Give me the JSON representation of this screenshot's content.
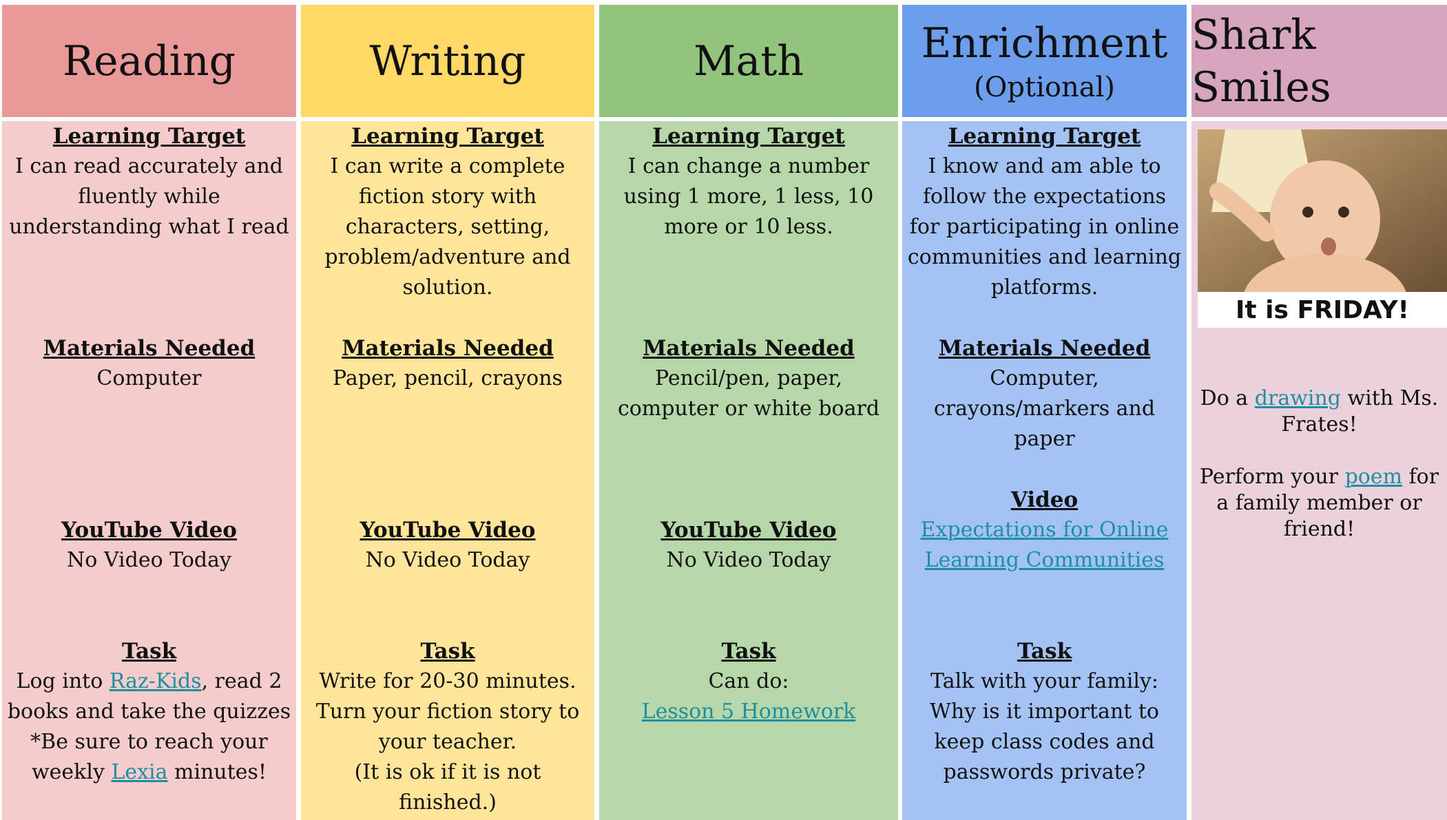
{
  "columns": [
    {
      "title": "Reading",
      "sections": [
        {
          "heading": "Learning Target",
          "text": [
            "I can read accurately and fluently while understanding what I read"
          ]
        },
        {
          "heading": "Materials Needed",
          "text": [
            "Computer"
          ]
        },
        {
          "heading": "YouTube Video",
          "text": [
            "No Video Today"
          ]
        },
        {
          "heading": "Task",
          "text": [
            "Log into ",
            "Raz-Kids",
            ", read 2 books and take the quizzes",
            "*Be sure to reach your weekly ",
            "Lexia",
            " minutes!"
          ]
        }
      ]
    },
    {
      "title": "Writing",
      "sections": [
        {
          "heading": "Learning Target",
          "text": [
            "I can write a complete fiction story with characters, setting, problem/adventure and solution."
          ]
        },
        {
          "heading": "Materials Needed",
          "text": [
            "Paper, pencil, crayons"
          ]
        },
        {
          "heading": "YouTube Video",
          "text": [
            "No Video Today"
          ]
        },
        {
          "heading": "Task",
          "text": [
            "Write for 20-30 minutes. Turn your fiction story to your teacher.",
            "(It is ok if it is not finished.)"
          ]
        }
      ]
    },
    {
      "title": "Math",
      "sections": [
        {
          "heading": "Learning Target",
          "text": [
            "I can change a number using 1 more, 1 less, 10 more or 10 less."
          ]
        },
        {
          "heading": "Materials Needed",
          "text": [
            "Pencil/pen, paper, computer or white board"
          ]
        },
        {
          "heading": "YouTube Video",
          "text": [
            "No Video Today"
          ]
        },
        {
          "heading": "Task",
          "text": [
            "Can do:",
            "Lesson 5 Homework"
          ]
        }
      ]
    },
    {
      "title": "Enrichment",
      "subtitle": "(Optional)",
      "sections": [
        {
          "heading": "Learning Target",
          "text": [
            "I know and am able to follow the expectations for participating in online communities and learning platforms."
          ]
        },
        {
          "heading": "Materials Needed",
          "text": [
            "Computer, crayons/markers and paper"
          ]
        },
        {
          "heading": "Video",
          "text": [
            "Expectations for Online Learning Communities"
          ]
        },
        {
          "heading": "Task",
          "text": [
            "Talk with your family: Why is it important to keep class codes and passwords private?"
          ]
        }
      ]
    },
    {
      "title": "Shark Smiles",
      "image_caption": "It is FRIDAY!",
      "text": [
        "Do a ",
        "drawing",
        " with Ms. Frates!",
        "Perform your ",
        "poem",
        " for a family member or friend!"
      ]
    }
  ]
}
